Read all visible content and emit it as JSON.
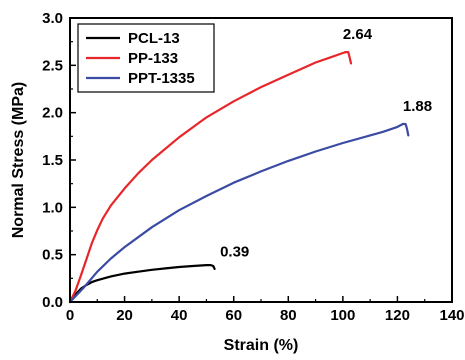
{
  "chart_data": {
    "type": "line",
    "xlabel": "Strain (%)",
    "ylabel": "Normal Stress (MPa)",
    "xlim": [
      0,
      140
    ],
    "ylim": [
      0.0,
      3.0
    ],
    "xticks": [
      0,
      20,
      40,
      60,
      80,
      100,
      120,
      140
    ],
    "yticks": [
      0.0,
      0.5,
      1.0,
      1.5,
      2.0,
      2.5,
      3.0
    ],
    "xtick_labels": [
      "0",
      "20",
      "40",
      "60",
      "80",
      "100",
      "120",
      "140"
    ],
    "ytick_labels": [
      "0.0",
      "0.5",
      "1.0",
      "1.5",
      "2.0",
      "2.5",
      "3.0"
    ],
    "grid": false,
    "legend_position": "top-left",
    "series": [
      {
        "name": "PCL-13",
        "color": "#000000",
        "x": [
          0,
          2,
          4,
          6,
          8,
          10,
          15,
          20,
          25,
          30,
          35,
          40,
          45,
          50,
          51.5,
          52.5,
          53
        ],
        "y": [
          0,
          0.08,
          0.14,
          0.18,
          0.21,
          0.23,
          0.27,
          0.3,
          0.32,
          0.34,
          0.355,
          0.37,
          0.38,
          0.39,
          0.39,
          0.38,
          0.35
        ]
      },
      {
        "name": "PP-133",
        "color": "#e8262a",
        "x": [
          0,
          2,
          4,
          6,
          8,
          10,
          12,
          15,
          20,
          25,
          30,
          40,
          50,
          60,
          70,
          80,
          90,
          95,
          100,
          101,
          102,
          102.5,
          103
        ],
        "y": [
          0,
          0.12,
          0.28,
          0.45,
          0.62,
          0.76,
          0.88,
          1.02,
          1.2,
          1.36,
          1.5,
          1.74,
          1.95,
          2.12,
          2.27,
          2.4,
          2.53,
          2.58,
          2.63,
          2.64,
          2.64,
          2.58,
          2.52
        ]
      },
      {
        "name": "PPT-1335",
        "color": "#3b4ba4",
        "x": [
          0,
          5,
          10,
          15,
          20,
          30,
          40,
          50,
          60,
          70,
          80,
          90,
          100,
          110,
          115,
          120,
          122,
          123,
          123.5,
          124
        ],
        "y": [
          0,
          0.15,
          0.32,
          0.46,
          0.58,
          0.79,
          0.97,
          1.12,
          1.26,
          1.38,
          1.49,
          1.59,
          1.68,
          1.76,
          1.8,
          1.85,
          1.88,
          1.88,
          1.83,
          1.76
        ]
      }
    ],
    "annotations": [
      {
        "text": "0.39",
        "x": 55,
        "y": 0.48
      },
      {
        "text": "2.64",
        "x": 100,
        "y": 2.78
      },
      {
        "text": "1.88",
        "x": 122,
        "y": 2.02
      }
    ]
  }
}
